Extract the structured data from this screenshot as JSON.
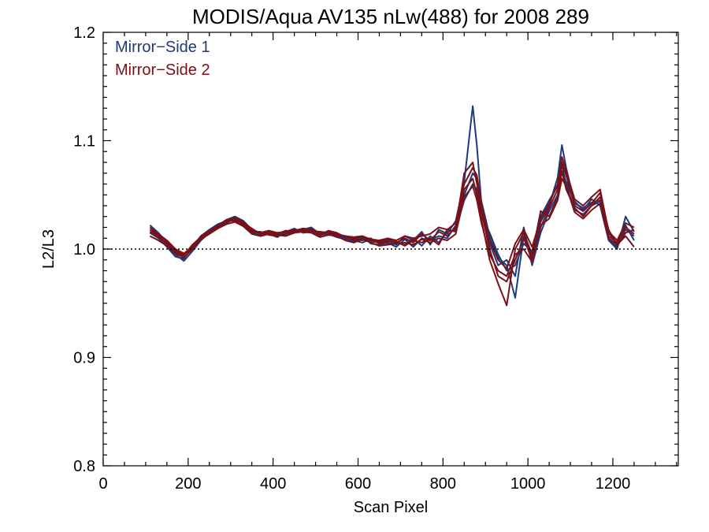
{
  "chart_data": {
    "type": "line",
    "title": "MODIS/Aqua AV135 nLw(488) for 2008 289",
    "xlabel": "Scan Pixel",
    "ylabel": "L2/L3",
    "xlim": [
      0,
      1354
    ],
    "ylim": [
      0.8,
      1.2
    ],
    "x_ticks": [
      0,
      200,
      400,
      600,
      800,
      1000,
      1200
    ],
    "y_ticks": [
      0.8,
      0.9,
      1.0,
      1.1,
      1.2
    ],
    "x_tick_labels": [
      "0",
      "200",
      "400",
      "600",
      "800",
      "1000",
      "1200"
    ],
    "y_tick_labels": [
      "0.8",
      "0.9",
      "1.0",
      "1.1",
      "1.2"
    ],
    "reference_line": 1.0,
    "legend_position": "top-left",
    "colors": {
      "ms1": "#1f3a7a",
      "ms2": "#7a1018"
    },
    "x": [
      110,
      130,
      150,
      170,
      190,
      210,
      230,
      250,
      270,
      290,
      310,
      330,
      350,
      370,
      390,
      410,
      430,
      450,
      470,
      490,
      510,
      530,
      550,
      570,
      590,
      610,
      630,
      650,
      670,
      690,
      710,
      730,
      750,
      770,
      790,
      810,
      830,
      850,
      870,
      880,
      890,
      910,
      930,
      950,
      970,
      990,
      1010,
      1030,
      1050,
      1070,
      1080,
      1090,
      1110,
      1130,
      1150,
      1170,
      1190,
      1210,
      1230,
      1250
    ],
    "series": [
      {
        "name": "Mirror−Side 1",
        "color": "#1f3a7a",
        "values": [
          1.022,
          1.015,
          1.006,
          0.998,
          0.992,
          1.0,
          1.01,
          1.016,
          1.022,
          1.027,
          1.03,
          1.026,
          1.018,
          1.014,
          1.016,
          1.013,
          1.015,
          1.017,
          1.016,
          1.018,
          1.015,
          1.016,
          1.013,
          1.011,
          1.009,
          1.01,
          1.007,
          1.006,
          1.008,
          1.004,
          1.012,
          1.008,
          1.016,
          1.004,
          1.018,
          1.014,
          1.026,
          1.062,
          1.132,
          1.095,
          1.045,
          1.012,
          0.992,
          0.985,
          0.955,
          1.012,
          0.992,
          1.025,
          1.04,
          1.066,
          1.096,
          1.075,
          1.042,
          1.038,
          1.043,
          1.045,
          1.01,
          1.002,
          1.018,
          1.012
        ]
      },
      {
        "name": "",
        "color": "#1f3a7a",
        "values": [
          1.018,
          1.012,
          1.004,
          0.995,
          0.989,
          0.998,
          1.008,
          1.015,
          1.02,
          1.024,
          1.028,
          1.024,
          1.017,
          1.012,
          1.014,
          1.011,
          1.016,
          1.019,
          1.015,
          1.016,
          1.013,
          1.014,
          1.011,
          1.009,
          1.007,
          1.012,
          1.005,
          1.004,
          1.006,
          1.002,
          1.009,
          1.002,
          1.01,
          1.008,
          1.012,
          1.01,
          1.022,
          1.05,
          1.07,
          1.065,
          1.04,
          1.005,
          0.985,
          0.99,
          0.975,
          1.02,
          0.985,
          1.015,
          1.035,
          1.05,
          1.078,
          1.06,
          1.036,
          1.032,
          1.04,
          1.044,
          1.015,
          1.005,
          1.022,
          1.008
        ]
      },
      {
        "name": "",
        "color": "#1f3a7a",
        "values": [
          1.015,
          1.01,
          1.002,
          0.993,
          0.991,
          1.002,
          1.012,
          1.018,
          1.023,
          1.026,
          1.027,
          1.022,
          1.015,
          1.013,
          1.015,
          1.014,
          1.013,
          1.016,
          1.018,
          1.02,
          1.014,
          1.015,
          1.012,
          1.01,
          1.008,
          1.006,
          1.009,
          1.007,
          1.005,
          1.006,
          1.004,
          1.01,
          1.003,
          1.012,
          1.006,
          1.016,
          1.018,
          1.045,
          1.06,
          1.055,
          1.03,
          1.015,
          0.995,
          0.98,
          0.985,
          1.005,
          0.998,
          1.03,
          1.045,
          1.058,
          1.07,
          1.062,
          1.044,
          1.036,
          1.046,
          1.04,
          1.008,
          1.0,
          1.03,
          1.016
        ]
      },
      {
        "name": "Mirror−Side 2",
        "color": "#7a1018",
        "values": [
          1.02,
          1.014,
          1.008,
          1.0,
          0.996,
          1.002,
          1.012,
          1.017,
          1.021,
          1.025,
          1.029,
          1.025,
          1.018,
          1.015,
          1.017,
          1.015,
          1.016,
          1.018,
          1.017,
          1.017,
          1.016,
          1.015,
          1.014,
          1.012,
          1.01,
          1.011,
          1.008,
          1.007,
          1.009,
          1.006,
          1.01,
          1.006,
          1.014,
          1.008,
          1.016,
          1.012,
          1.02,
          1.07,
          1.08,
          1.06,
          1.035,
          1.0,
          0.975,
          0.97,
          0.99,
          1.01,
          0.99,
          1.02,
          1.038,
          1.055,
          1.08,
          1.068,
          1.04,
          1.035,
          1.042,
          1.052,
          1.012,
          1.006,
          1.02,
          1.014
        ]
      },
      {
        "name": "",
        "color": "#7a1018",
        "values": [
          1.016,
          1.011,
          1.005,
          0.997,
          0.994,
          1.004,
          1.011,
          1.016,
          1.022,
          1.026,
          1.026,
          1.023,
          1.016,
          1.016,
          1.013,
          1.012,
          1.014,
          1.017,
          1.019,
          1.018,
          1.012,
          1.017,
          1.015,
          1.011,
          1.009,
          1.008,
          1.01,
          1.005,
          1.007,
          1.007,
          1.003,
          1.008,
          1.006,
          1.01,
          1.004,
          1.018,
          1.016,
          1.055,
          1.065,
          1.05,
          1.028,
          0.99,
          0.968,
          0.948,
          1.0,
          1.015,
          0.995,
          1.035,
          1.03,
          1.048,
          1.072,
          1.055,
          1.038,
          1.03,
          1.04,
          1.048,
          1.018,
          1.003,
          1.015,
          1.018
        ]
      },
      {
        "name": "",
        "color": "#7a1018",
        "values": [
          1.012,
          1.008,
          1.003,
          0.996,
          0.992,
          1.0,
          1.009,
          1.014,
          1.019,
          1.023,
          1.025,
          1.021,
          1.014,
          1.012,
          1.014,
          1.013,
          1.012,
          1.015,
          1.016,
          1.015,
          1.011,
          1.013,
          1.012,
          1.008,
          1.006,
          1.009,
          1.006,
          1.003,
          1.004,
          1.005,
          1.006,
          1.004,
          1.009,
          1.006,
          1.01,
          1.008,
          1.014,
          1.048,
          1.058,
          1.045,
          1.025,
          0.995,
          0.98,
          0.975,
          0.995,
          1.0,
          0.988,
          1.022,
          1.028,
          1.045,
          1.065,
          1.058,
          1.034,
          1.028,
          1.036,
          1.042,
          1.01,
          1.004,
          1.012,
          1.002
        ]
      },
      {
        "name": "",
        "color": "#7a1018",
        "values": [
          1.018,
          1.013,
          1.007,
          0.999,
          0.995,
          1.001,
          1.01,
          1.016,
          1.02,
          1.027,
          1.028,
          1.024,
          1.019,
          1.014,
          1.016,
          1.014,
          1.017,
          1.016,
          1.018,
          1.019,
          1.014,
          1.016,
          1.013,
          1.012,
          1.011,
          1.012,
          1.009,
          1.008,
          1.01,
          1.008,
          1.012,
          1.01,
          1.012,
          1.014,
          1.02,
          1.018,
          1.024,
          1.06,
          1.075,
          1.068,
          1.042,
          1.008,
          0.99,
          0.982,
          1.005,
          1.018,
          1.002,
          1.028,
          1.042,
          1.06,
          1.085,
          1.072,
          1.046,
          1.04,
          1.048,
          1.055,
          1.016,
          1.008,
          1.024,
          1.02
        ]
      }
    ]
  }
}
